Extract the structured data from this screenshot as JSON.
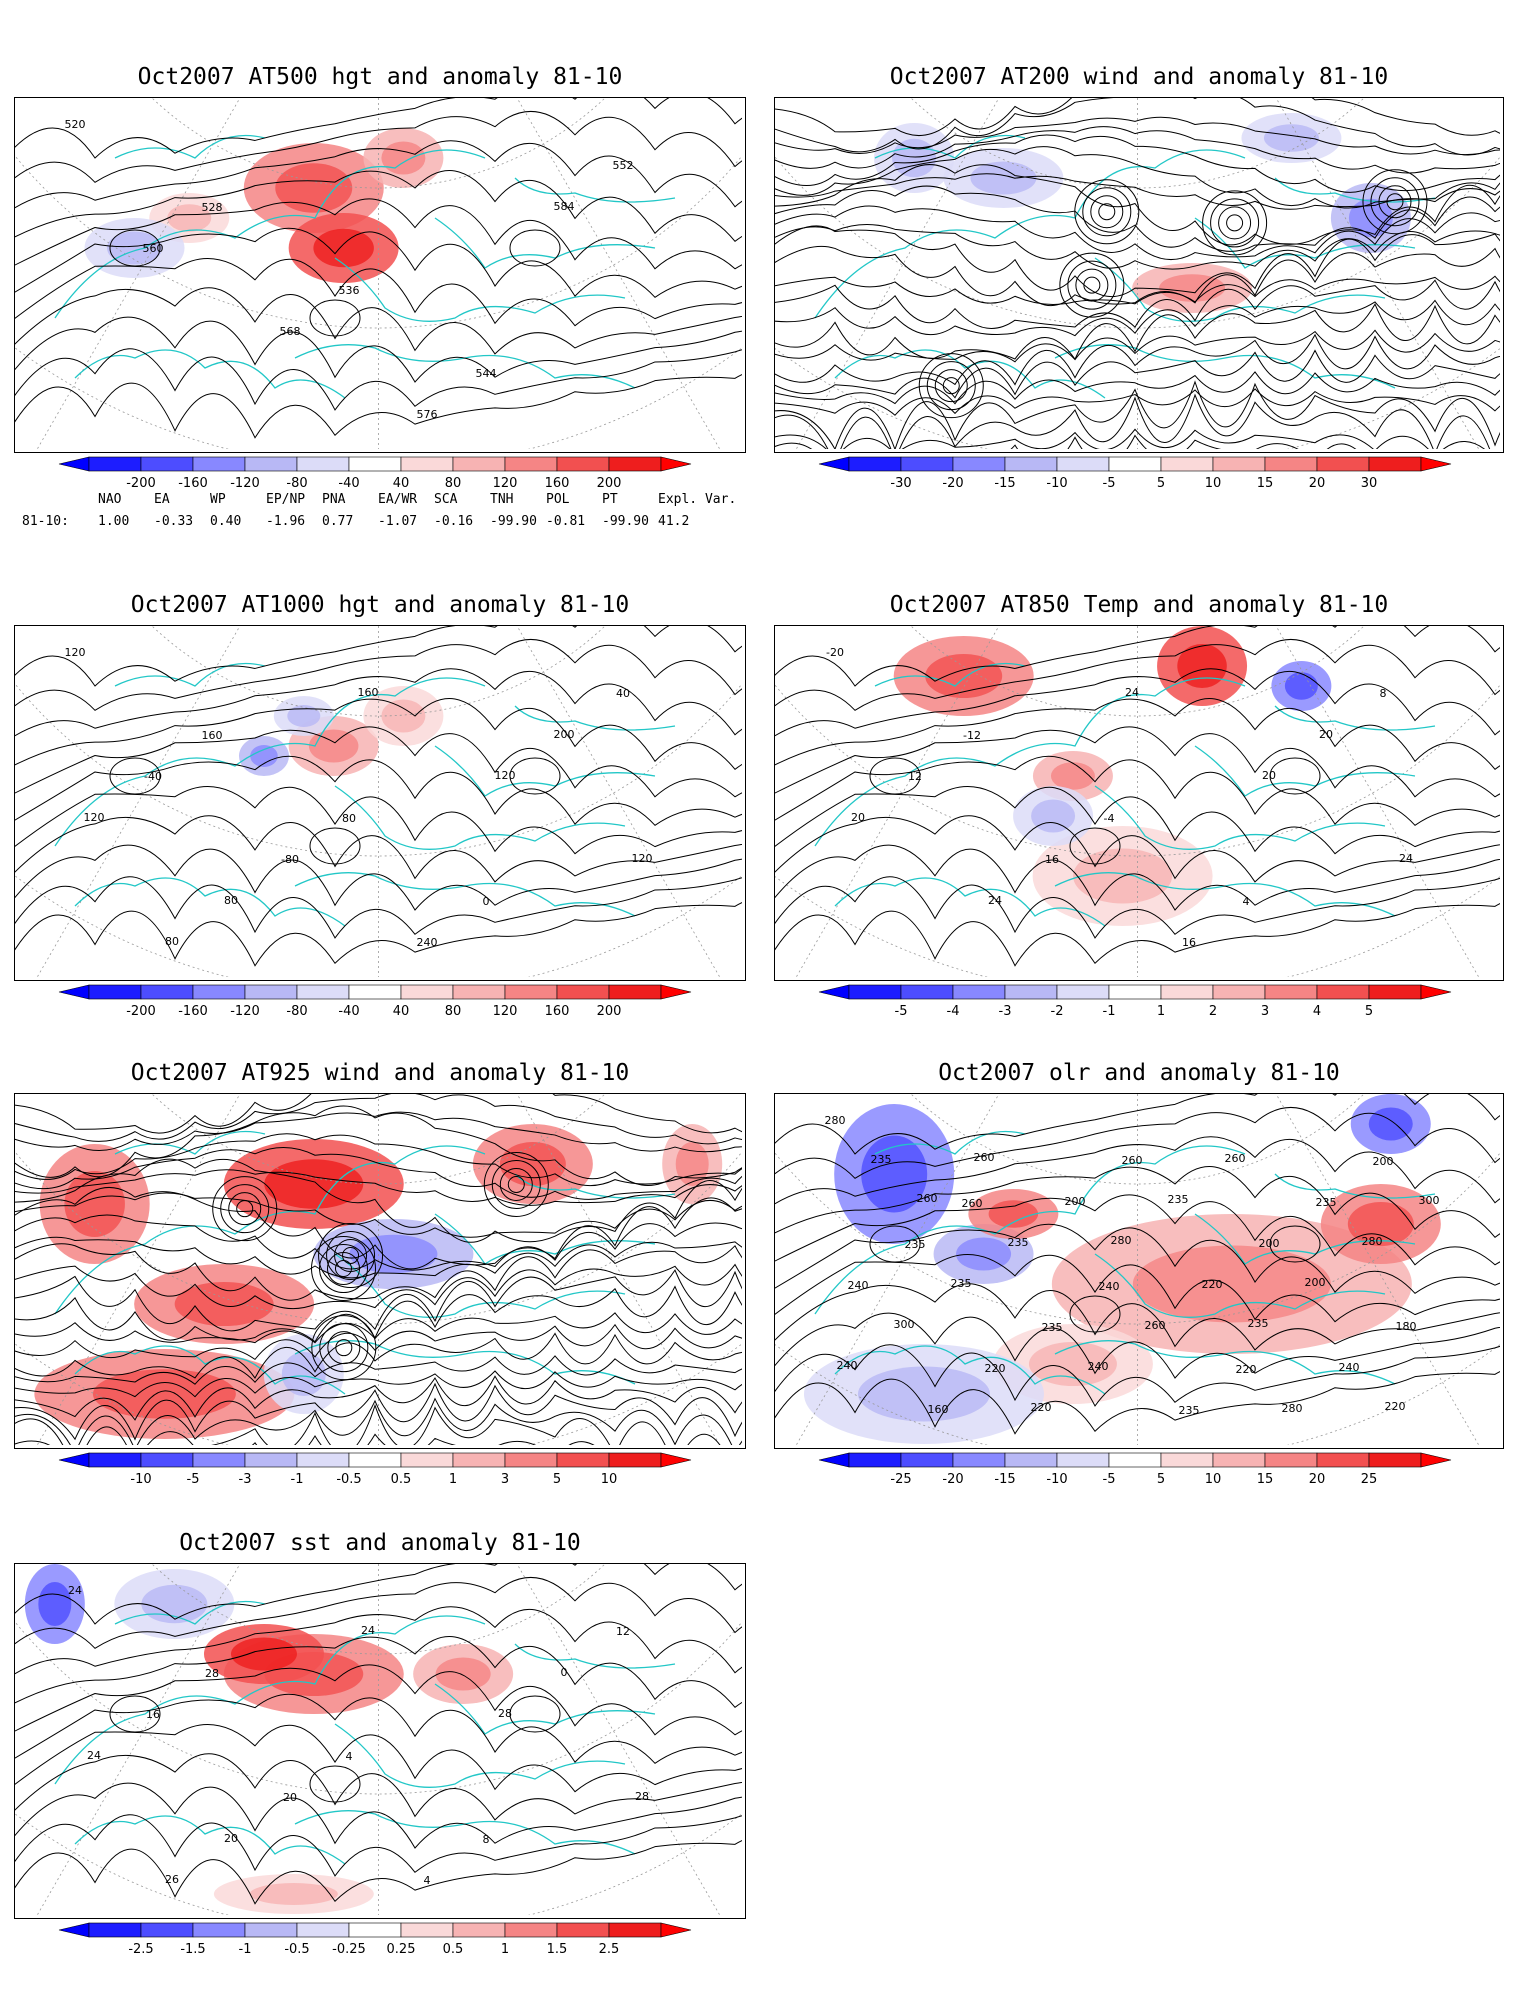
{
  "colors": {
    "coast": "#22c7c7",
    "contour": "#000000",
    "neg": [
      "#1d1dff",
      "#4d4dff",
      "#8888ff",
      "#b8b8f5",
      "#dcdcf8"
    ],
    "pos": [
      "#fad9d9",
      "#f7b3b3",
      "#f58585",
      "#f25050",
      "#ee1e1e"
    ]
  },
  "panels": [
    {
      "id": "at500",
      "title": "Oct2007 AT500 hgt and anomaly 81-10",
      "kind": "contour",
      "labels": [
        "520",
        "528",
        "536",
        "544",
        "552",
        "560",
        "568",
        "576",
        "584"
      ],
      "colorbar": [
        "-200",
        "-160",
        "-120",
        "-80",
        "-40",
        "40",
        "80",
        "120",
        "160",
        "200"
      ]
    },
    {
      "id": "at200",
      "title": "Oct2007 AT200 wind and anomaly 81-10",
      "kind": "stream",
      "labels": [],
      "colorbar": [
        "-30",
        "-20",
        "-15",
        "-10",
        "-5",
        "5",
        "10",
        "15",
        "20",
        "30"
      ]
    },
    {
      "id": "at1000",
      "title": "Oct2007 AT1000 hgt and anomaly 81-10",
      "kind": "contour",
      "labels": [
        "120",
        "160",
        "80",
        "0",
        "40",
        "-40",
        "-80",
        "240",
        "200",
        "120",
        "80",
        "160",
        "120",
        "120",
        "80"
      ],
      "colorbar": [
        "-200",
        "-160",
        "-120",
        "-80",
        "-40",
        "40",
        "80",
        "120",
        "160",
        "200"
      ]
    },
    {
      "id": "at850",
      "title": "Oct2007 AT850 Temp and anomaly 81-10",
      "kind": "contour",
      "labels": [
        "-20",
        "-12",
        "-4",
        "4",
        "8",
        "12",
        "16",
        "16",
        "20",
        "20",
        "24",
        "24",
        "20",
        "24"
      ],
      "colorbar": [
        "-5",
        "-4",
        "-3",
        "-2",
        "-1",
        "1",
        "2",
        "3",
        "4",
        "5"
      ]
    },
    {
      "id": "at925",
      "title": "Oct2007 AT925 wind and anomaly 81-10",
      "kind": "stream",
      "labels": [],
      "colorbar": [
        "-10",
        "-5",
        "-3",
        "-1",
        "-0.5",
        "0.5",
        "1",
        "3",
        "5",
        "10"
      ]
    },
    {
      "id": "olr",
      "title": "Oct2007 olr and anomaly 81-10",
      "kind": "contour",
      "labels": [
        "280",
        "260",
        "240",
        "220",
        "200",
        "235",
        "235",
        "235",
        "235",
        "240",
        "220",
        "260",
        "200",
        "180",
        "160",
        "200",
        "220",
        "240",
        "235",
        "235",
        "260",
        "280",
        "300",
        "235",
        "240",
        "260",
        "280",
        "300",
        "220",
        "235",
        "200",
        "240",
        "260",
        "280",
        "235",
        "220",
        "260"
      ],
      "colorbar": [
        "-25",
        "-20",
        "-15",
        "-10",
        "-5",
        "5",
        "10",
        "15",
        "20",
        "25"
      ]
    },
    {
      "id": "sst",
      "title": "Oct2007 sst and anomaly 81-10",
      "kind": "contour",
      "labels": [
        "24",
        "28",
        "4",
        "8",
        "12",
        "16",
        "20",
        "4",
        "0",
        "24",
        "20",
        "24",
        "28",
        "28",
        "26"
      ],
      "colorbar": [
        "-2.5",
        "-1.5",
        "-1",
        "-0.5",
        "-0.25",
        "0.25",
        "0.5",
        "1",
        "1.5",
        "2.5"
      ]
    }
  ],
  "indices": {
    "names": [
      "NAO",
      "EA",
      "WP",
      "EP/NP",
      "PNA",
      "EA/WR",
      "SCA",
      "TNH",
      "POL",
      "PT",
      "Expl. Var."
    ],
    "row_label": "81-10:",
    "values": [
      "1.00",
      "-0.33",
      "0.40",
      "-1.96",
      "0.77",
      "-1.07",
      "-0.16",
      "-99.90",
      "-0.81",
      "-99.90",
      "41.2"
    ]
  }
}
